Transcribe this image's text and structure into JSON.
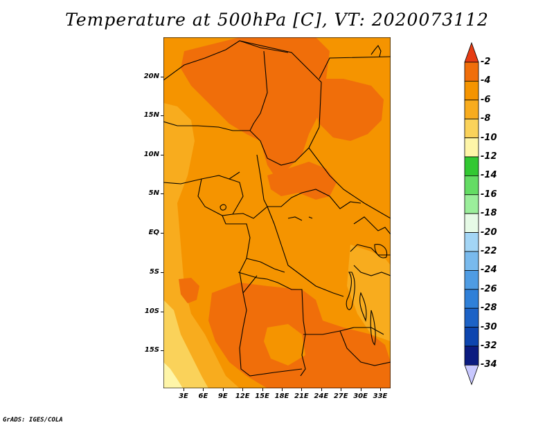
{
  "title": "Temperature at 500hPa [C], VT: 2020073112",
  "footer": "GrADS: IGES/COLA",
  "map": {
    "lat_labels": [
      "20N",
      "15N",
      "10N",
      "5N",
      "EQ",
      "5S",
      "10S",
      "15S"
    ],
    "lon_labels": [
      "3E",
      "6E",
      "9E",
      "12E",
      "15E",
      "18E",
      "21E",
      "24E",
      "27E",
      "30E",
      "33E"
    ]
  },
  "colorbar": {
    "labels": [
      "-2",
      "-4",
      "-6",
      "-8",
      "-10",
      "-12",
      "-14",
      "-16",
      "-18",
      "-20",
      "-22",
      "-24",
      "-26",
      "-28",
      "-30",
      "-32",
      "-34"
    ],
    "colors": [
      "#e63c14",
      "#f06e0a",
      "#f59400",
      "#f8ac1e",
      "#fad25a",
      "#fef5a8",
      "#32c832",
      "#64dc64",
      "#9bee9b",
      "#e6fae6",
      "#a3d5f5",
      "#79baed",
      "#4f9ce3",
      "#2f80d8",
      "#1c62c6",
      "#0d45af",
      "#0b1b80",
      "#c8c8ff"
    ]
  }
}
